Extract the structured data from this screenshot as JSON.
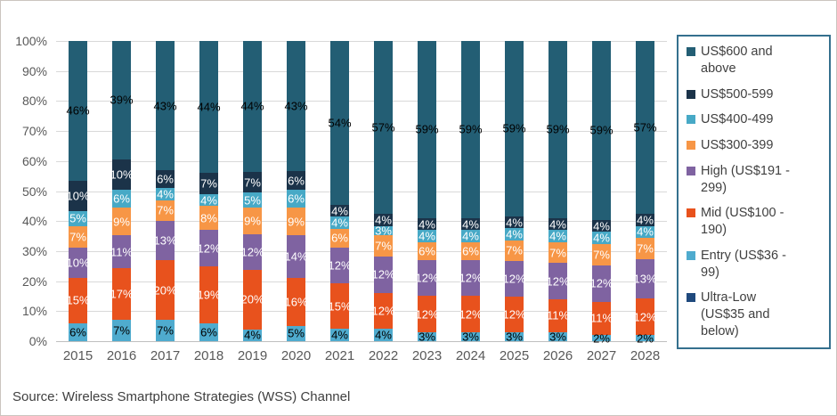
{
  "source": "Source: Wireless Smartphone Strategies (WSS) Channel",
  "chart_data": {
    "type": "bar",
    "stacked": true,
    "title": "",
    "xlabel": "",
    "ylabel": "",
    "ylim": [
      0,
      100
    ],
    "grid": true,
    "legend_position": "right",
    "yticks": [
      "100%",
      "90%",
      "80%",
      "70%",
      "60%",
      "50%",
      "40%",
      "30%",
      "20%",
      "10%",
      "0%"
    ],
    "categories": [
      "2015",
      "2016",
      "2017",
      "2018",
      "2019",
      "2020",
      "2021",
      "2022",
      "2023",
      "2024",
      "2025",
      "2026",
      "2027",
      "2028"
    ],
    "series": [
      {
        "name": "Ultra-Low (US$35 and below)",
        "color": "#1F497D",
        "label_color": "#000000",
        "values": [
          0,
          0,
          0,
          0,
          0,
          0,
          0,
          0,
          0,
          0,
          0,
          0,
          0,
          0
        ]
      },
      {
        "name": "Entry (US$36 - 99)",
        "color": "#4FABCE",
        "label_color": "#000000",
        "values": [
          6,
          7,
          7,
          6,
          4,
          5,
          4,
          4,
          3,
          3,
          3,
          3,
          2,
          2
        ]
      },
      {
        "name": "Mid (US$100 - 190)",
        "color": "#E8521D",
        "label_color": "#FFFFFF",
        "values": [
          15,
          17,
          20,
          19,
          20,
          16,
          15,
          12,
          12,
          12,
          12,
          11,
          11,
          12
        ]
      },
      {
        "name": "High (US$191 - 299)",
        "color": "#7F63A1",
        "label_color": "#FFFFFF",
        "values": [
          10,
          11,
          13,
          12,
          12,
          14,
          12,
          12,
          12,
          12,
          12,
          12,
          12,
          13
        ]
      },
      {
        "name": "US$300-399",
        "color": "#F79646",
        "label_color": "#FFFFFF",
        "values": [
          7,
          9,
          7,
          8,
          9,
          9,
          6,
          7,
          6,
          6,
          7,
          7,
          7,
          7
        ]
      },
      {
        "name": "US$400-499",
        "color": "#47A9C6",
        "label_color": "#FFFFFF",
        "values": [
          5,
          6,
          4,
          4,
          5,
          6,
          4,
          3,
          4,
          4,
          4,
          4,
          4,
          4
        ]
      },
      {
        "name": "US$500-599",
        "color": "#1B3349",
        "label_color": "#FFFFFF",
        "values": [
          10,
          10,
          6,
          7,
          7,
          6,
          4,
          4,
          4,
          4,
          4,
          4,
          4,
          4
        ]
      },
      {
        "name": "US$600 and above",
        "color": "#235E74",
        "label_color": "#000000",
        "values": [
          46,
          39,
          43,
          44,
          44,
          43,
          54,
          57,
          59,
          59,
          59,
          59,
          59,
          57
        ]
      }
    ]
  }
}
